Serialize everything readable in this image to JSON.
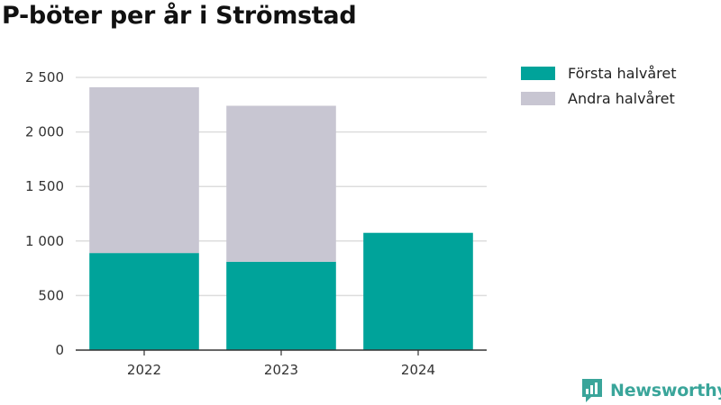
{
  "title": "P-böter per år i Strömstad",
  "brand": {
    "name": "Newsworthy",
    "color": "#3aa59a",
    "icon": "newsworthy-logo-icon"
  },
  "chart_data": {
    "type": "bar",
    "stacked": true,
    "categories": [
      "2022",
      "2023",
      "2024"
    ],
    "series": [
      {
        "name": "Första halvåret",
        "values": [
          890,
          810,
          1075
        ],
        "color": "#00a39a"
      },
      {
        "name": "Andra halvåret",
        "values": [
          1520,
          1430,
          0
        ],
        "color": "#c8c6d2"
      }
    ],
    "ylim": [
      0,
      2500
    ],
    "yticks": [
      0,
      500,
      1000,
      1500,
      2000,
      2500
    ],
    "ytick_labels": [
      "0",
      "500",
      "1 000",
      "1 500",
      "2 000",
      "2 500"
    ],
    "grid": true,
    "legend_position": "top-right"
  }
}
